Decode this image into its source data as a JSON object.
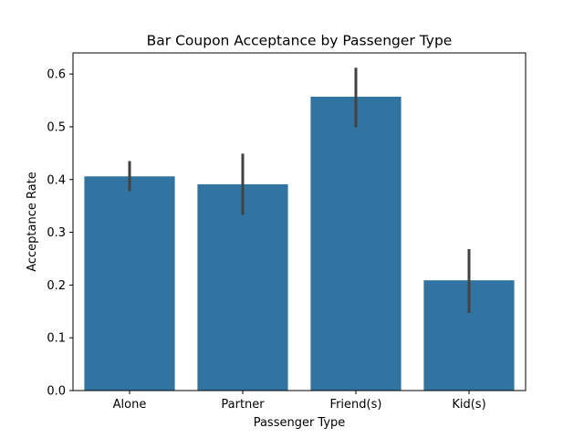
{
  "chart_data": {
    "type": "bar",
    "title": "Bar Coupon Acceptance by Passenger Type",
    "xlabel": "Passenger Type",
    "ylabel": "Acceptance Rate",
    "categories": [
      "Alone",
      "Partner",
      "Friend(s)",
      "Kid(s)"
    ],
    "values": [
      0.406,
      0.391,
      0.557,
      0.209
    ],
    "error_low": [
      0.378,
      0.333,
      0.499,
      0.147
    ],
    "error_high": [
      0.435,
      0.449,
      0.612,
      0.268
    ],
    "ylim": [
      0,
      0.64
    ],
    "yticks": [
      0.0,
      0.1,
      0.2,
      0.3,
      0.4,
      0.5,
      0.6
    ],
    "ytick_labels": [
      "0.0",
      "0.1",
      "0.2",
      "0.3",
      "0.4",
      "0.5",
      "0.6"
    ],
    "grid": false,
    "legend": "none",
    "bar_color": "#3274a1",
    "error_color": "#424242"
  }
}
